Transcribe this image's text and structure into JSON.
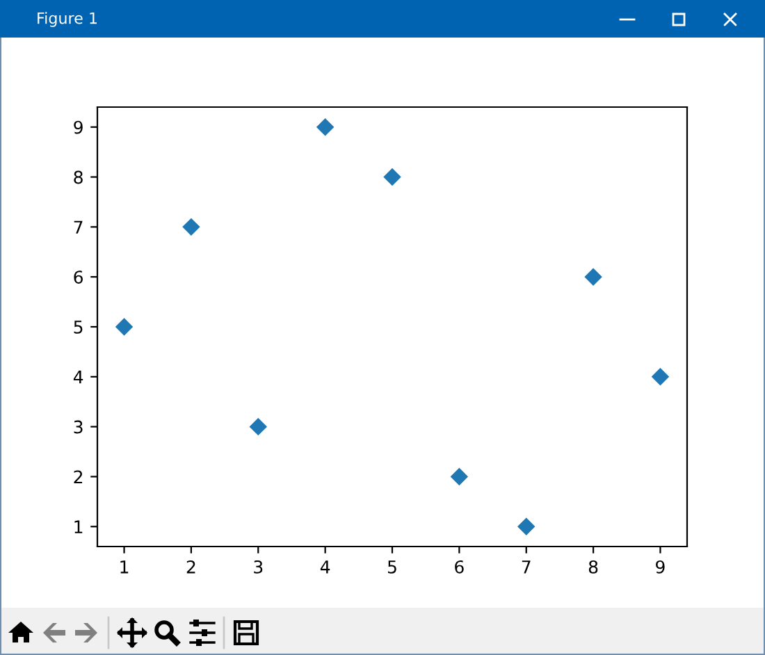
{
  "chart_data": {
    "type": "scatter",
    "annotations": [
      "Figure 1"
    ],
    "x": [
      1,
      2,
      3,
      4,
      5,
      6,
      7,
      8,
      9
    ],
    "values": [
      5,
      7,
      3,
      9,
      8,
      2,
      1,
      6,
      4
    ],
    "color": "#1f77b4",
    "marker": "diamond",
    "xlim": [
      0.6,
      9.4
    ],
    "ylim": [
      0.6,
      9.4
    ],
    "xticks": [
      1,
      2,
      3,
      4,
      5,
      6,
      7,
      8,
      9
    ],
    "yticks": [
      1,
      2,
      3,
      4,
      5,
      6,
      7,
      8,
      9
    ]
  }
}
